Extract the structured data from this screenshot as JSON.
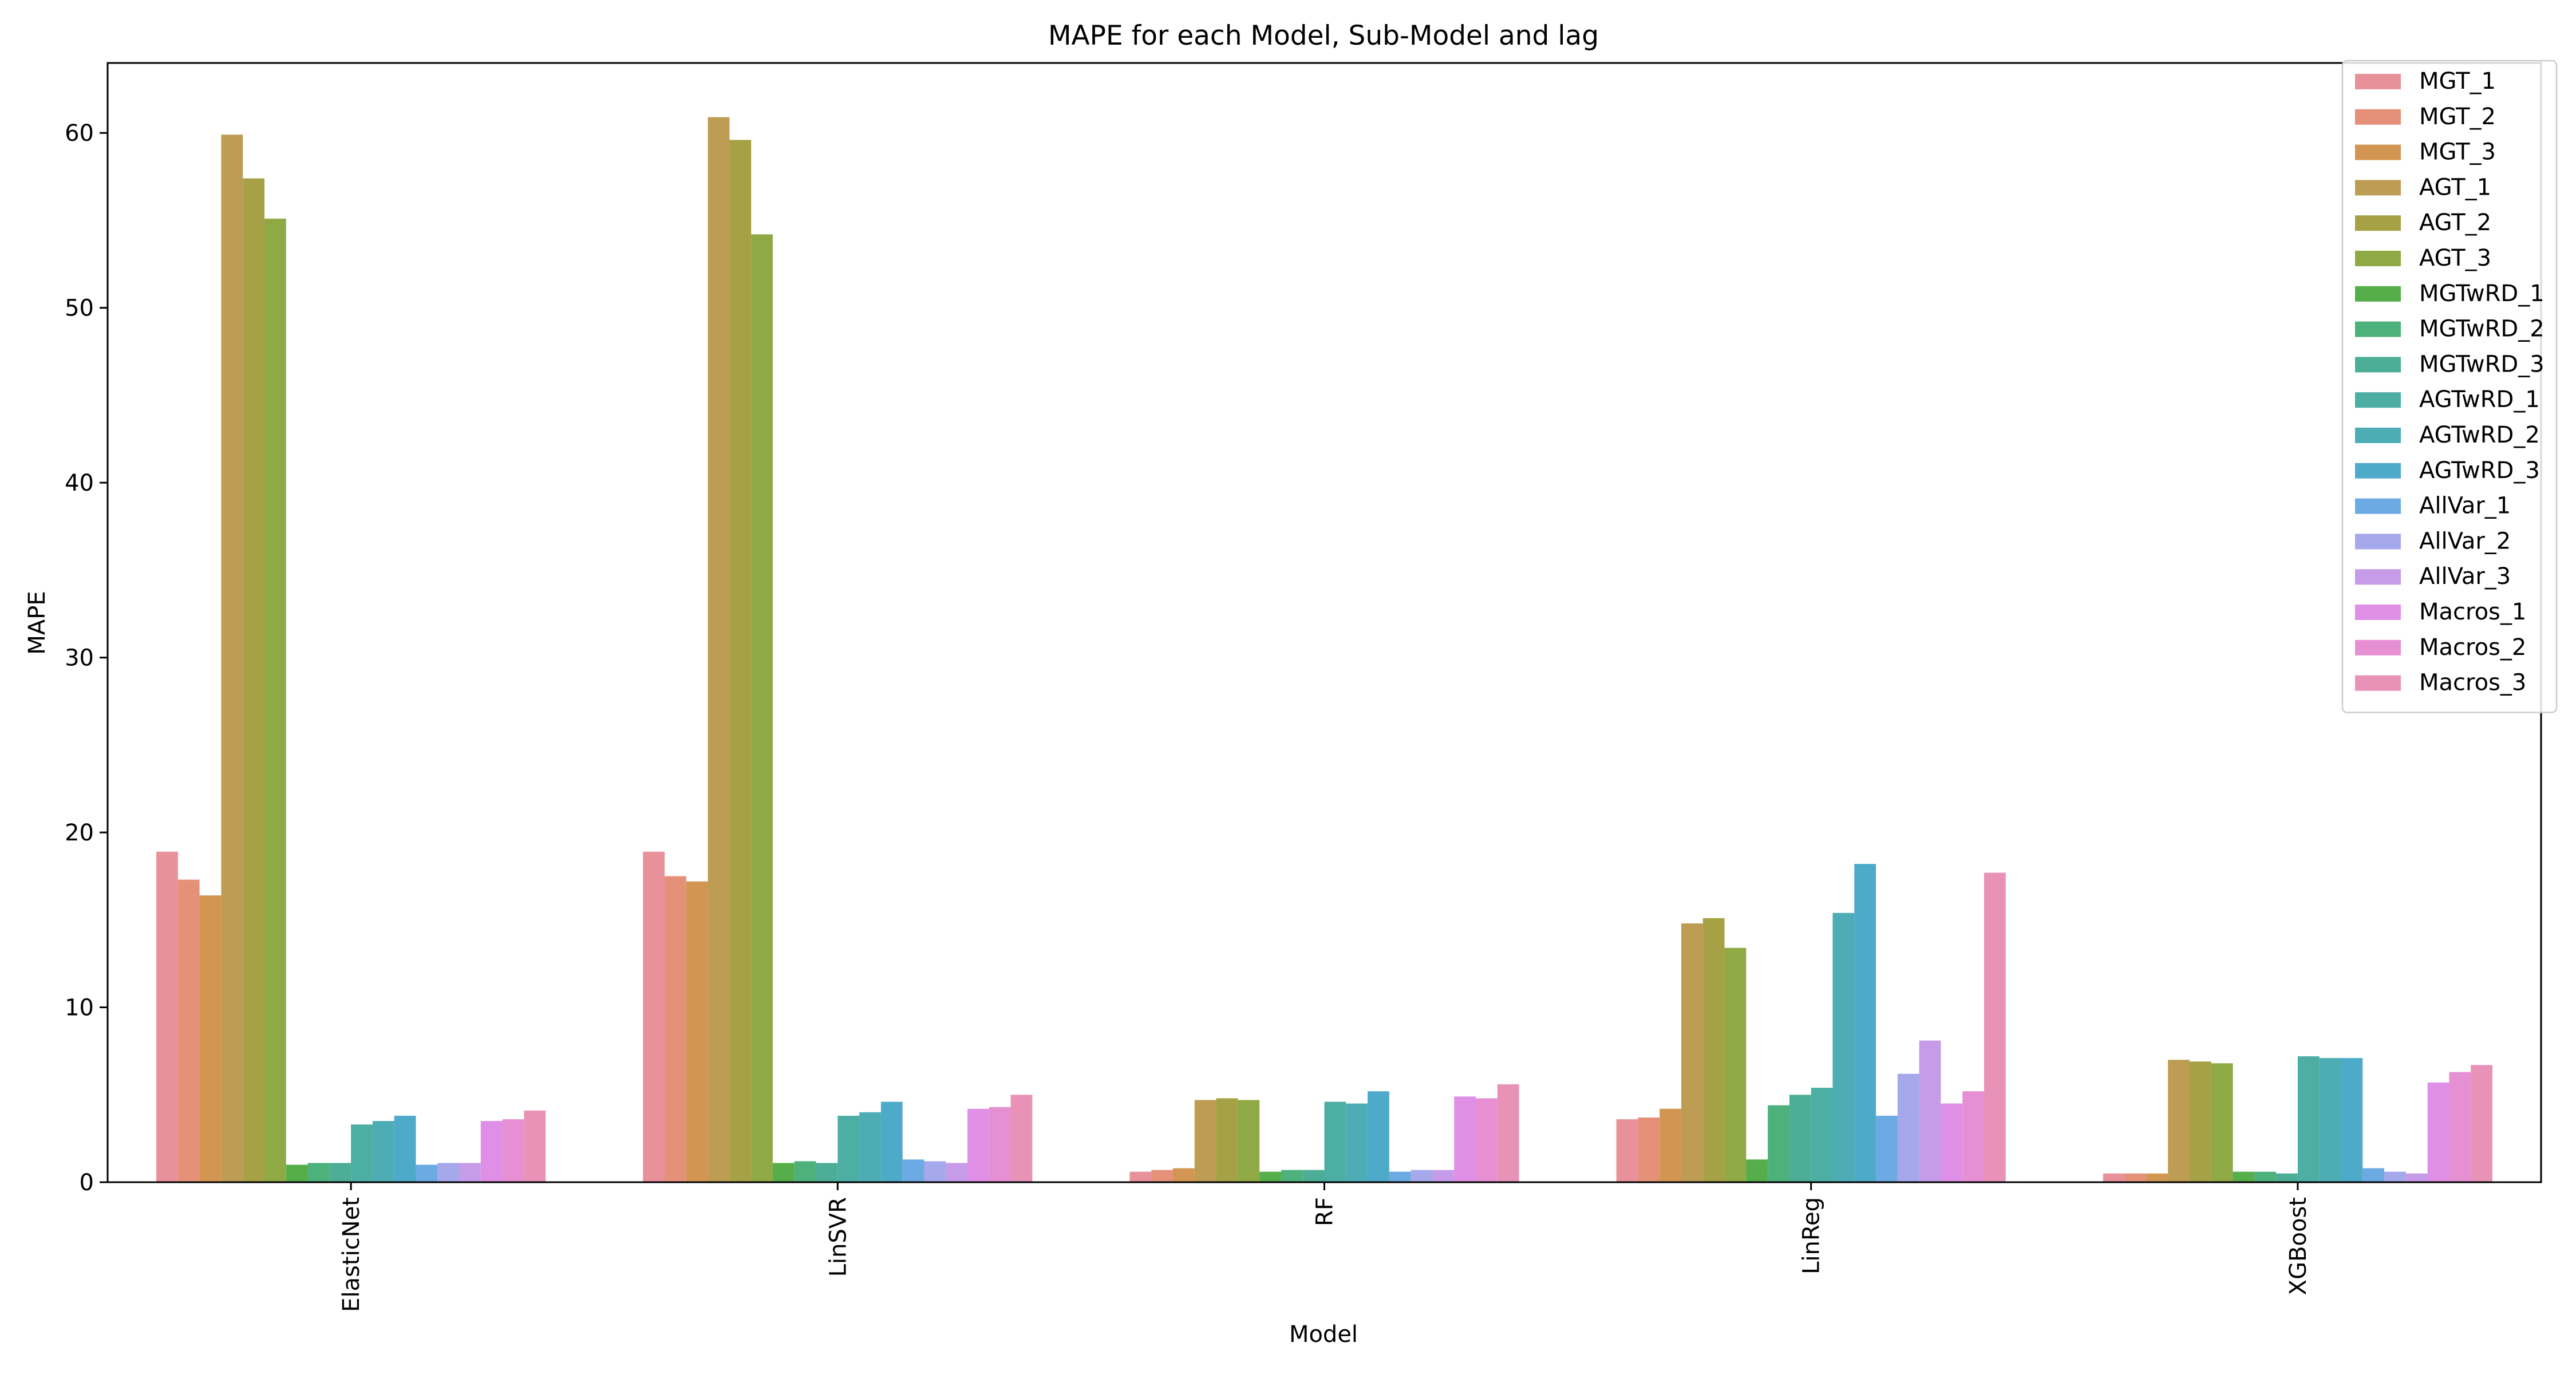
{
  "chart_data": {
    "type": "bar",
    "title": "MAPE for each Model, Sub-Model and lag",
    "xlabel": "Model",
    "ylabel": "MAPE",
    "ylim": [
      0,
      64
    ],
    "yticks": [
      0,
      10,
      20,
      30,
      40,
      50,
      60
    ],
    "grid": false,
    "legend_position": "top-right",
    "categories": [
      "ElasticNet",
      "LinSVR",
      "RF",
      "LinReg",
      "XGBoost"
    ],
    "series": [
      {
        "name": "MGT_1",
        "color": "#e8919a",
        "values": [
          18.9,
          18.9,
          0.6,
          3.6,
          0.5
        ]
      },
      {
        "name": "MGT_2",
        "color": "#e59079",
        "values": [
          17.3,
          17.5,
          0.7,
          3.7,
          0.5
        ]
      },
      {
        "name": "MGT_3",
        "color": "#d39652",
        "values": [
          16.4,
          17.2,
          0.8,
          4.2,
          0.5
        ]
      },
      {
        "name": "AGT_1",
        "color": "#bd9c53",
        "values": [
          59.9,
          60.9,
          4.7,
          14.8,
          7.0
        ]
      },
      {
        "name": "AGT_2",
        "color": "#a5a144",
        "values": [
          57.4,
          59.6,
          4.8,
          15.1,
          6.9
        ]
      },
      {
        "name": "AGT_3",
        "color": "#8fa945",
        "values": [
          55.1,
          54.2,
          4.7,
          13.4,
          6.8
        ]
      },
      {
        "name": "MGTwRD_1",
        "color": "#55ae4a",
        "values": [
          1.0,
          1.1,
          0.6,
          1.3,
          0.6
        ]
      },
      {
        "name": "MGTwRD_2",
        "color": "#4db17c",
        "values": [
          1.1,
          1.2,
          0.7,
          4.4,
          0.6
        ]
      },
      {
        "name": "MGTwRD_3",
        "color": "#4cae96",
        "values": [
          1.1,
          1.1,
          0.7,
          5.0,
          0.5
        ]
      },
      {
        "name": "AGTwRD_1",
        "color": "#4daea4",
        "values": [
          3.3,
          3.8,
          4.6,
          5.4,
          7.2
        ]
      },
      {
        "name": "AGTwRD_2",
        "color": "#4eacb5",
        "values": [
          3.5,
          4.0,
          4.5,
          15.4,
          7.1
        ]
      },
      {
        "name": "AGTwRD_3",
        "color": "#4eaac9",
        "values": [
          3.8,
          4.6,
          5.2,
          18.2,
          7.1
        ]
      },
      {
        "name": "AllVar_1",
        "color": "#6baae3",
        "values": [
          1.0,
          1.3,
          0.6,
          3.8,
          0.8
        ]
      },
      {
        "name": "AllVar_2",
        "color": "#a5a8ea",
        "values": [
          1.1,
          1.2,
          0.7,
          6.2,
          0.6
        ]
      },
      {
        "name": "AllVar_3",
        "color": "#c69ce8",
        "values": [
          1.1,
          1.1,
          0.7,
          8.1,
          0.5
        ]
      },
      {
        "name": "Macros_1",
        "color": "#df8fe6",
        "values": [
          3.5,
          4.2,
          4.9,
          4.5,
          5.7
        ]
      },
      {
        "name": "Macros_2",
        "color": "#e690d3",
        "values": [
          3.6,
          4.3,
          4.8,
          5.2,
          6.3
        ]
      },
      {
        "name": "Macros_3",
        "color": "#e992b8",
        "values": [
          4.1,
          5.0,
          5.6,
          17.7,
          6.7
        ]
      }
    ]
  }
}
